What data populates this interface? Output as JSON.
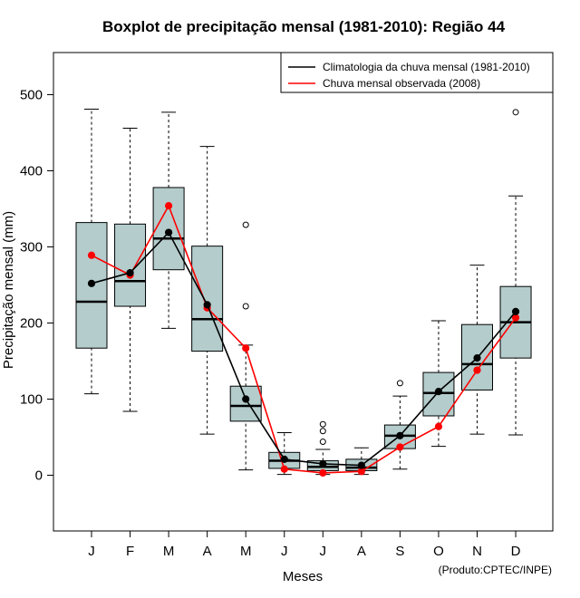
{
  "chart_data": {
    "type": "boxplot",
    "title": "Boxplot de precipitação mensal (1981-2010): Região 44",
    "xlabel": "Meses",
    "ylabel": "Precipitação mensal (mm)",
    "ylim": [
      -70,
      560
    ],
    "yticks": [
      0,
      100,
      200,
      300,
      400,
      500
    ],
    "categories": [
      "J",
      "F",
      "M",
      "A",
      "M",
      "J",
      "J",
      "A",
      "S",
      "O",
      "N",
      "D"
    ],
    "boxes": [
      {
        "whisker_low": 107,
        "q1": 167,
        "median": 228,
        "q3": 332,
        "whisker_high": 481,
        "outliers": []
      },
      {
        "whisker_low": 84,
        "q1": 222,
        "median": 255,
        "q3": 330,
        "whisker_high": 456,
        "outliers": []
      },
      {
        "whisker_low": 193,
        "q1": 270,
        "median": 311,
        "q3": 378,
        "whisker_high": 477,
        "outliers": []
      },
      {
        "whisker_low": 54,
        "q1": 163,
        "median": 205,
        "q3": 301,
        "whisker_high": 432,
        "outliers": []
      },
      {
        "whisker_low": 7,
        "q1": 71,
        "median": 91,
        "q3": 117,
        "whisker_high": 171,
        "outliers": [
          222,
          329
        ]
      },
      {
        "whisker_low": 1,
        "q1": 9,
        "median": 19,
        "q3": 30,
        "whisker_high": 56,
        "outliers": []
      },
      {
        "whisker_low": 1,
        "q1": 6,
        "median": 11,
        "q3": 19,
        "whisker_high": 34,
        "outliers": [
          44,
          58,
          67
        ]
      },
      {
        "whisker_low": 1,
        "q1": 6,
        "median": 10,
        "q3": 21,
        "whisker_high": 36,
        "outliers": []
      },
      {
        "whisker_low": 8,
        "q1": 35,
        "median": 52,
        "q3": 66,
        "whisker_high": 104,
        "outliers": [
          121
        ]
      },
      {
        "whisker_low": 38,
        "q1": 78,
        "median": 108,
        "q3": 135,
        "whisker_high": 203,
        "outliers": []
      },
      {
        "whisker_low": 54,
        "q1": 112,
        "median": 146,
        "q3": 198,
        "whisker_high": 276,
        "outliers": []
      },
      {
        "whisker_low": 53,
        "q1": 154,
        "median": 201,
        "q3": 248,
        "whisker_high": 367,
        "outliers": [
          477
        ]
      }
    ],
    "series": [
      {
        "name": "Climatologia da chuva mensal (1981-2010)",
        "color": "#000000",
        "values": [
          252,
          266,
          319,
          224,
          100,
          21,
          15,
          13,
          52,
          110,
          154,
          215
        ]
      },
      {
        "name": "Chuva mensal observada (2008)",
        "color": "#ff0000",
        "values": [
          289,
          263,
          354,
          220,
          167,
          8,
          3,
          5,
          37,
          64,
          138,
          207
        ]
      }
    ],
    "box_fill": "#b4cccc",
    "legend_position": "top-right",
    "credit": "(Produto:CPTEC/INPE)"
  }
}
